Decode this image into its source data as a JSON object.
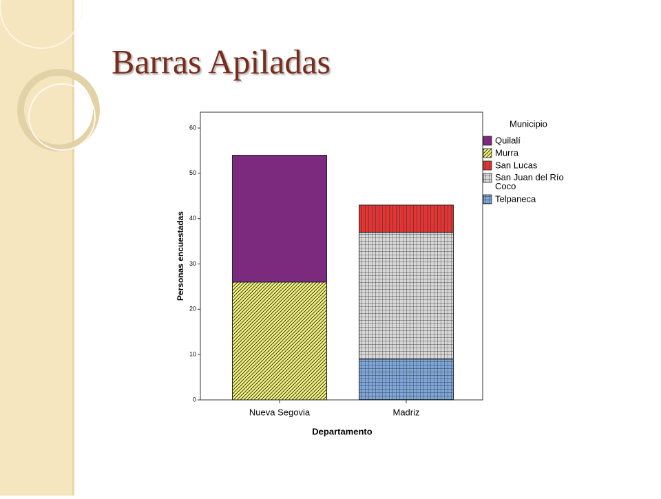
{
  "slide_title": "Barras Apiladas",
  "chart_data": {
    "type": "stacked_bar",
    "x_label": "Departamento",
    "y_label": "Personas encuestadas",
    "legend_title": "Municipio",
    "categories": [
      "Nueva Segovia",
      "Madriz"
    ],
    "series": [
      {
        "name": "Quilalí",
        "color": "#7b2a7e",
        "pattern": "solid",
        "values": [
          28,
          null
        ]
      },
      {
        "name": "Murra",
        "color": "#f0f07a",
        "pattern": "diagonal",
        "values": [
          26,
          null
        ]
      },
      {
        "name": "San Lucas",
        "color": "#e03535",
        "pattern": "vertical",
        "values": [
          null,
          6
        ]
      },
      {
        "name": "San Juan del Río Coco",
        "color": "#d8d8d8",
        "pattern": "grid",
        "values": [
          null,
          28
        ]
      },
      {
        "name": "Telpaneca",
        "color": "#7fa6d8",
        "pattern": "grid",
        "values": [
          null,
          9
        ]
      }
    ],
    "ylim": [
      0,
      63.5
    ],
    "yticks": [
      0,
      10,
      20,
      30,
      40,
      50,
      60
    ]
  }
}
